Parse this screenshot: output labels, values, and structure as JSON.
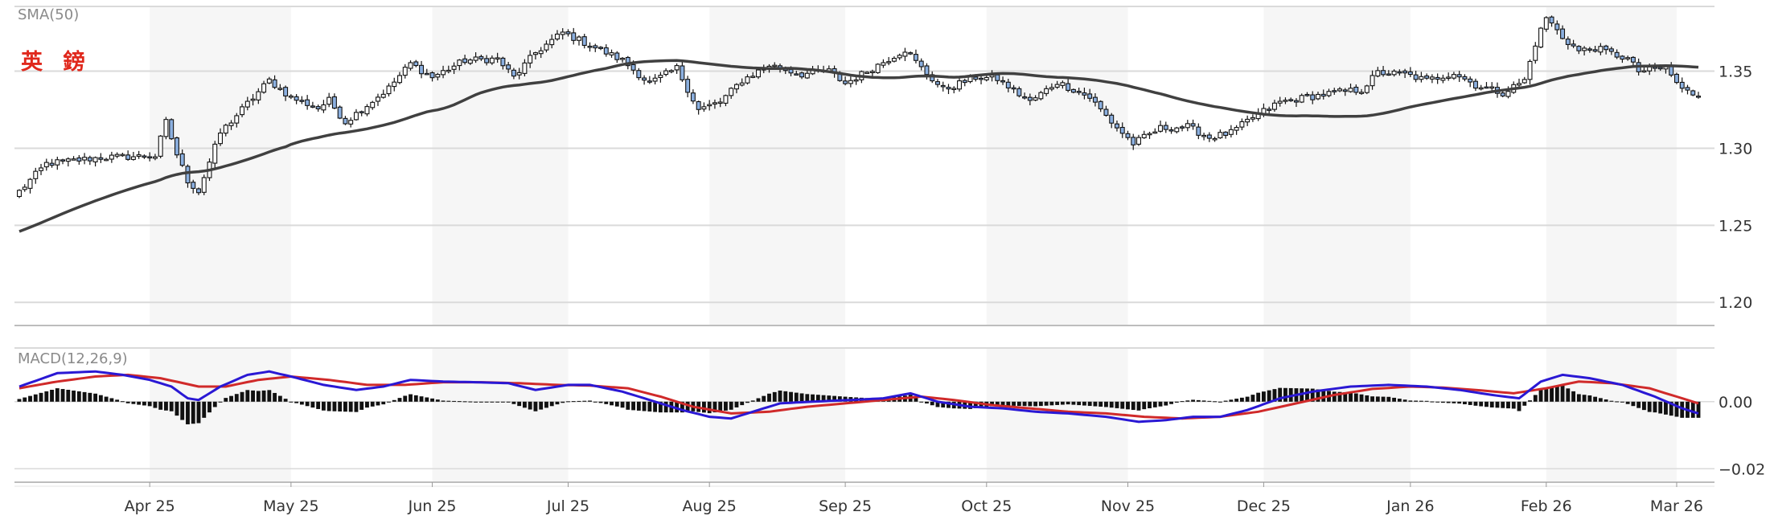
{
  "chart_data": [
    {
      "type": "candlestick",
      "title": "英 鎊",
      "indicator_label": "SMA(50)",
      "y_ticks": [
        "1.35",
        "1.30",
        "1.25",
        "1.20"
      ],
      "ylim": [
        1.185,
        1.392
      ],
      "x_ticks": [
        "Apr 25",
        "May 25",
        "Jun 25",
        "Jul 25",
        "Aug 25",
        "Sep 25",
        "Oct 25",
        "Nov 25",
        "Dec 25",
        "Jan 26",
        "Feb 26",
        "Mar 26"
      ],
      "x_ticks_index": [
        24,
        50,
        76,
        101,
        127,
        152,
        178,
        204,
        229,
        256,
        281,
        305
      ],
      "n_bars": 310,
      "price_anchors": [
        [
          0,
          1.272
        ],
        [
          5,
          1.29
        ],
        [
          15,
          1.294
        ],
        [
          25,
          1.295
        ],
        [
          27,
          1.317
        ],
        [
          29,
          1.296
        ],
        [
          31,
          1.279
        ],
        [
          33,
          1.272
        ],
        [
          37,
          1.31
        ],
        [
          42,
          1.329
        ],
        [
          46,
          1.344
        ],
        [
          50,
          1.333
        ],
        [
          55,
          1.326
        ],
        [
          57,
          1.331
        ],
        [
          60,
          1.317
        ],
        [
          64,
          1.328
        ],
        [
          68,
          1.339
        ],
        [
          72,
          1.355
        ],
        [
          76,
          1.346
        ],
        [
          82,
          1.357
        ],
        [
          88,
          1.358
        ],
        [
          91,
          1.346
        ],
        [
          95,
          1.362
        ],
        [
          100,
          1.375
        ],
        [
          105,
          1.367
        ],
        [
          111,
          1.357
        ],
        [
          116,
          1.342
        ],
        [
          121,
          1.352
        ],
        [
          125,
          1.325
        ],
        [
          129,
          1.33
        ],
        [
          133,
          1.344
        ],
        [
          138,
          1.354
        ],
        [
          144,
          1.348
        ],
        [
          149,
          1.35
        ],
        [
          152,
          1.342
        ],
        [
          157,
          1.352
        ],
        [
          163,
          1.364
        ],
        [
          166,
          1.352
        ],
        [
          170,
          1.338
        ],
        [
          176,
          1.346
        ],
        [
          180,
          1.345
        ],
        [
          186,
          1.33
        ],
        [
          191,
          1.343
        ],
        [
          197,
          1.333
        ],
        [
          201,
          1.317
        ],
        [
          205,
          1.303
        ],
        [
          210,
          1.313
        ],
        [
          215,
          1.314
        ],
        [
          219,
          1.307
        ],
        [
          223,
          1.31
        ],
        [
          227,
          1.32
        ],
        [
          232,
          1.33
        ],
        [
          237,
          1.333
        ],
        [
          242,
          1.336
        ],
        [
          247,
          1.338
        ],
        [
          250,
          1.349
        ],
        [
          255,
          1.348
        ],
        [
          259,
          1.344
        ],
        [
          264,
          1.349
        ],
        [
          268,
          1.341
        ],
        [
          273,
          1.336
        ],
        [
          277,
          1.344
        ],
        [
          279,
          1.368
        ],
        [
          281,
          1.385
        ],
        [
          284,
          1.372
        ],
        [
          287,
          1.363
        ],
        [
          290,
          1.365
        ],
        [
          296,
          1.358
        ],
        [
          298,
          1.35
        ],
        [
          303,
          1.352
        ],
        [
          306,
          1.338
        ],
        [
          310,
          1.333
        ]
      ],
      "macd": {
        "label": "MACD(12,26,9)",
        "y_ticks": [
          "0.00",
          "−0.02"
        ],
        "ylim": [
          -0.024,
          0.016
        ],
        "macd_anchors": [
          [
            0,
            0.0045
          ],
          [
            7,
            0.0085
          ],
          [
            14,
            0.009
          ],
          [
            19,
            0.008
          ],
          [
            24,
            0.0065
          ],
          [
            28,
            0.0045
          ],
          [
            31,
            0.001
          ],
          [
            33,
            0.0005
          ],
          [
            37,
            0.0045
          ],
          [
            42,
            0.008
          ],
          [
            46,
            0.009
          ],
          [
            50,
            0.0075
          ],
          [
            56,
            0.005
          ],
          [
            62,
            0.0035
          ],
          [
            67,
            0.0045
          ],
          [
            72,
            0.0065
          ],
          [
            78,
            0.006
          ],
          [
            84,
            0.0058
          ],
          [
            90,
            0.0055
          ],
          [
            95,
            0.0035
          ],
          [
            101,
            0.005
          ],
          [
            105,
            0.005
          ],
          [
            111,
            0.003
          ],
          [
            117,
            0.0
          ],
          [
            122,
            -0.0025
          ],
          [
            127,
            -0.0045
          ],
          [
            131,
            -0.005
          ],
          [
            135,
            -0.003
          ],
          [
            140,
            -0.0005
          ],
          [
            146,
            0.0
          ],
          [
            153,
            0.0005
          ],
          [
            159,
            0.001
          ],
          [
            164,
            0.0025
          ],
          [
            169,
            0.0
          ],
          [
            175,
            -0.0015
          ],
          [
            181,
            -0.002
          ],
          [
            187,
            -0.003
          ],
          [
            193,
            -0.0035
          ],
          [
            200,
            -0.0045
          ],
          [
            206,
            -0.006
          ],
          [
            211,
            -0.0055
          ],
          [
            216,
            -0.0045
          ],
          [
            221,
            -0.0045
          ],
          [
            226,
            -0.0025
          ],
          [
            232,
            0.001
          ],
          [
            238,
            0.003
          ],
          [
            245,
            0.0045
          ],
          [
            252,
            0.005
          ],
          [
            259,
            0.0045
          ],
          [
            265,
            0.0035
          ],
          [
            271,
            0.002
          ],
          [
            276,
            0.001
          ],
          [
            280,
            0.006
          ],
          [
            284,
            0.008
          ],
          [
            289,
            0.007
          ],
          [
            295,
            0.005
          ],
          [
            301,
            0.0015
          ],
          [
            306,
            -0.002
          ],
          [
            310,
            -0.004
          ]
        ],
        "signal_anchors": [
          [
            0,
            0.004
          ],
          [
            7,
            0.006
          ],
          [
            14,
            0.0075
          ],
          [
            20,
            0.008
          ],
          [
            26,
            0.007
          ],
          [
            33,
            0.0045
          ],
          [
            38,
            0.0045
          ],
          [
            44,
            0.0065
          ],
          [
            50,
            0.0075
          ],
          [
            57,
            0.0065
          ],
          [
            64,
            0.005
          ],
          [
            71,
            0.005
          ],
          [
            78,
            0.0058
          ],
          [
            85,
            0.0058
          ],
          [
            92,
            0.0055
          ],
          [
            99,
            0.005
          ],
          [
            105,
            0.0048
          ],
          [
            112,
            0.004
          ],
          [
            118,
            0.0015
          ],
          [
            124,
            -0.0015
          ],
          [
            131,
            -0.0035
          ],
          [
            138,
            -0.003
          ],
          [
            145,
            -0.0015
          ],
          [
            152,
            -0.0005
          ],
          [
            159,
            0.0005
          ],
          [
            166,
            0.0015
          ],
          [
            172,
            0.0005
          ],
          [
            179,
            -0.001
          ],
          [
            186,
            -0.002
          ],
          [
            193,
            -0.003
          ],
          [
            200,
            -0.0035
          ],
          [
            207,
            -0.0045
          ],
          [
            214,
            -0.005
          ],
          [
            221,
            -0.0045
          ],
          [
            228,
            -0.003
          ],
          [
            235,
            -0.0005
          ],
          [
            242,
            0.002
          ],
          [
            249,
            0.0038
          ],
          [
            256,
            0.0045
          ],
          [
            262,
            0.0042
          ],
          [
            268,
            0.0035
          ],
          [
            275,
            0.0025
          ],
          [
            281,
            0.004
          ],
          [
            287,
            0.006
          ],
          [
            293,
            0.0055
          ],
          [
            300,
            0.004
          ],
          [
            306,
            0.001
          ],
          [
            310,
            -0.001
          ]
        ]
      }
    }
  ],
  "colors": {
    "up_fill": "#ffffff",
    "down_fill": "#8cb0e0",
    "candle_border": "#111111",
    "sma_line": "#404040",
    "macd_line": "#2a18d4",
    "signal_line": "#d02a2a",
    "histogram": "#111111",
    "band": "#f6f6f6",
    "grid": "#dadada",
    "title": "#e0281c"
  }
}
